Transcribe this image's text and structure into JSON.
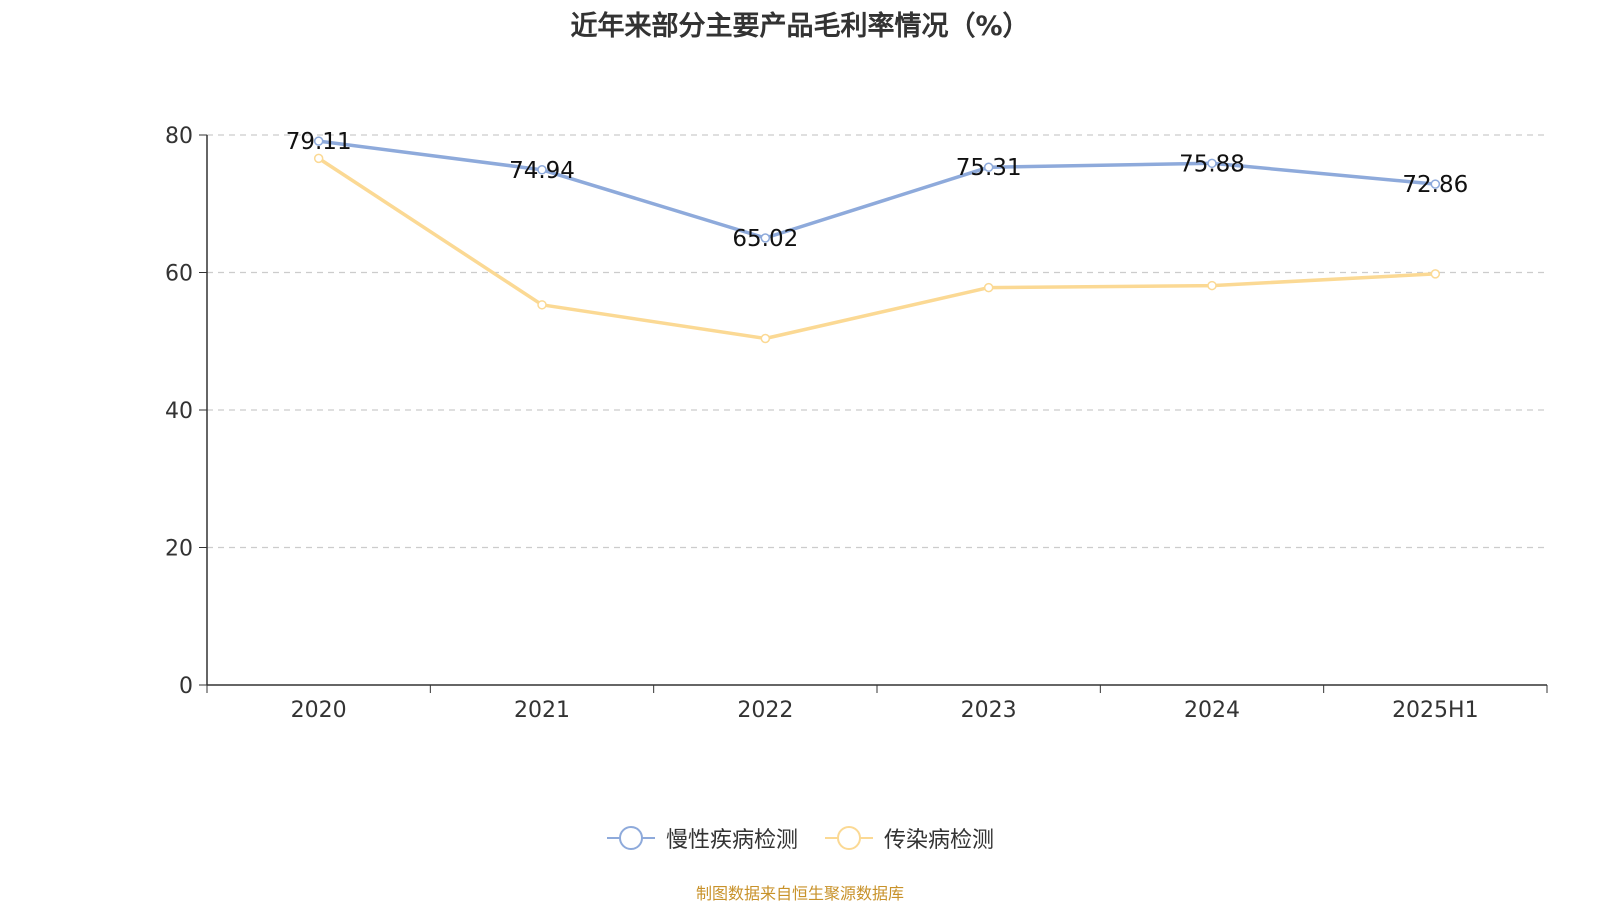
{
  "title": "近年来部分主要产品毛利率情况（%）",
  "source_note": "制图数据来自恒生聚源数据库",
  "chart_data": {
    "type": "line",
    "categories": [
      "2020",
      "2021",
      "2022",
      "2023",
      "2024",
      "2025H1"
    ],
    "ylim": [
      0,
      80
    ],
    "yticks": [
      0,
      20,
      40,
      60,
      80
    ],
    "grid": true,
    "legend_position": "bottom",
    "series": [
      {
        "name": "慢性疾病检测",
        "color": "#8eaadb",
        "values": [
          79.11,
          74.94,
          65.02,
          75.31,
          75.88,
          72.86
        ],
        "labels": [
          "79.11",
          "74.94",
          "65.02",
          "75.31",
          "75.88",
          "72.86"
        ]
      },
      {
        "name": "传染病检测",
        "color": "#fbd994",
        "values": [
          76.6,
          55.3,
          50.4,
          57.8,
          58.1,
          59.8
        ]
      }
    ]
  }
}
